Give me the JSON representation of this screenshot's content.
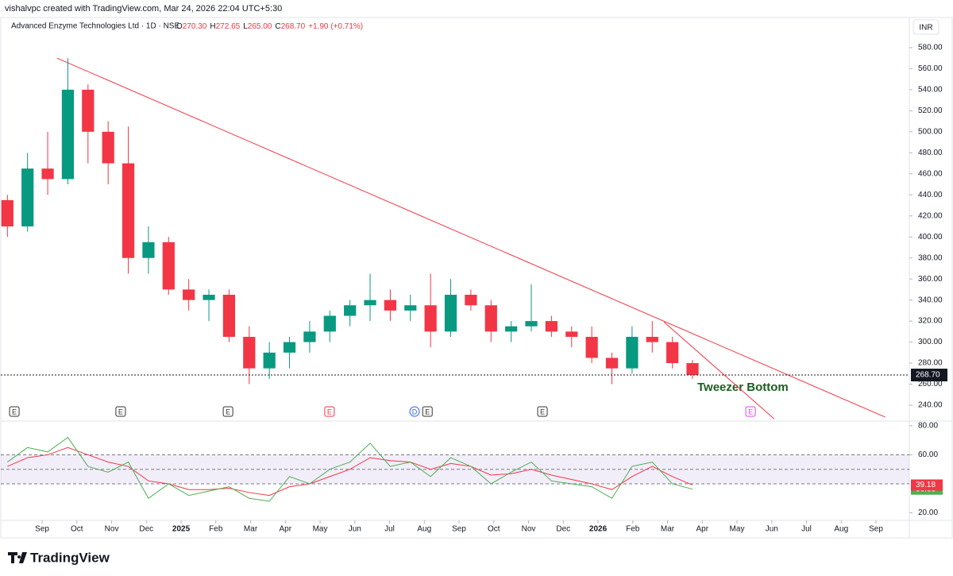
{
  "chart_data": {
    "type": "candlestick",
    "credit": "vishalvpc created with TradingView.com, Mar 24, 2026 22:04 UTC+5:30",
    "symbol": "Advanced Enzyme Technologies Ltd · 1D · NSE",
    "ohlc_header": [
      {
        "key": "O",
        "value": "270.30"
      },
      {
        "key": "H",
        "value": "272.65"
      },
      {
        "key": "L",
        "value": "265.00"
      },
      {
        "key": "C",
        "value": "268.70"
      }
    ],
    "change": "+1.90 (+0.71%)",
    "currency": "INR",
    "brand": "TradingView",
    "annotation": "Tweezer Bottom",
    "last_price": {
      "value": 268.7,
      "label": "268.70"
    },
    "up_color": "#089981",
    "down_color": "#f23645",
    "x": [
      -1,
      -0.42,
      0.16,
      0.74,
      1.32,
      1.9,
      2.48,
      3.06,
      3.64,
      4.22,
      4.8,
      5.38,
      5.96,
      6.54,
      7.12,
      7.7,
      8.28,
      8.86,
      9.44,
      10.02,
      10.6,
      11.18,
      11.76,
      12.34,
      12.92,
      13.5,
      14.08,
      14.66,
      15.24,
      15.82,
      16.4,
      16.98,
      17.56,
      18.14,
      18.72
    ],
    "open": [
      435,
      410,
      465,
      455,
      540,
      500,
      470,
      380,
      395,
      350,
      340,
      345,
      305,
      275,
      290,
      300,
      310,
      325,
      335,
      340,
      330,
      335,
      310,
      345,
      335,
      310,
      315,
      320,
      310,
      305,
      285,
      275,
      305,
      300,
      280
    ],
    "high": [
      440,
      480,
      500,
      570,
      545,
      510,
      505,
      410,
      400,
      360,
      350,
      350,
      315,
      300,
      305,
      320,
      330,
      340,
      365,
      350,
      345,
      365,
      360,
      350,
      340,
      320,
      355,
      325,
      315,
      315,
      290,
      315,
      320,
      305,
      283
    ],
    "low": [
      400,
      405,
      440,
      450,
      470,
      450,
      365,
      365,
      345,
      330,
      320,
      300,
      260,
      265,
      275,
      290,
      300,
      315,
      320,
      320,
      320,
      295,
      305,
      330,
      300,
      300,
      310,
      305,
      295,
      280,
      260,
      270,
      290,
      275,
      265
    ],
    "close": [
      410,
      465,
      455,
      540,
      500,
      470,
      380,
      395,
      350,
      340,
      345,
      305,
      275,
      290,
      300,
      310,
      325,
      335,
      340,
      330,
      335,
      310,
      345,
      335,
      310,
      315,
      320,
      310,
      305,
      285,
      275,
      305,
      300,
      280,
      268.7
    ],
    "xlim": [
      -1.03,
      24.96
    ],
    "xticks": [
      {
        "value": 0,
        "label": "Sep"
      },
      {
        "value": 1,
        "label": "Oct"
      },
      {
        "value": 2,
        "label": "Nov"
      },
      {
        "value": 3,
        "label": "Dec"
      },
      {
        "value": 4,
        "label": "2025"
      },
      {
        "value": 5,
        "label": "Feb"
      },
      {
        "value": 6,
        "label": "Mar"
      },
      {
        "value": 7,
        "label": "Apr"
      },
      {
        "value": 8,
        "label": "May"
      },
      {
        "value": 9,
        "label": "Jun"
      },
      {
        "value": 10,
        "label": "Jul"
      },
      {
        "value": 11,
        "label": "Aug"
      },
      {
        "value": 12,
        "label": "Sep"
      },
      {
        "value": 13,
        "label": "Oct"
      },
      {
        "value": 14,
        "label": "Nov"
      },
      {
        "value": 15,
        "label": "Dec"
      },
      {
        "value": 16,
        "label": "2026"
      },
      {
        "value": 17,
        "label": "Feb"
      },
      {
        "value": 18,
        "label": "Mar"
      },
      {
        "value": 19,
        "label": "Apr"
      },
      {
        "value": 20,
        "label": "May"
      },
      {
        "value": 21,
        "label": "Jun"
      },
      {
        "value": 22,
        "label": "Jul"
      },
      {
        "value": 23,
        "label": "Aug"
      },
      {
        "value": 24,
        "label": "Sep"
      }
    ],
    "ylim": [
      226.4,
      591.3
    ],
    "yticks": [
      {
        "value": 240,
        "label": "240.00"
      },
      {
        "value": 260,
        "label": "260.00"
      },
      {
        "value": 280,
        "label": "280.00"
      },
      {
        "value": 300,
        "label": "300.00"
      },
      {
        "value": 320,
        "label": "320.00"
      },
      {
        "value": 340,
        "label": "340.00"
      },
      {
        "value": 360,
        "label": "360.00"
      },
      {
        "value": 380,
        "label": "380.00"
      },
      {
        "value": 400,
        "label": "400.00"
      },
      {
        "value": 420,
        "label": "420.00"
      },
      {
        "value": 440,
        "label": "440.00"
      },
      {
        "value": 460,
        "label": "460.00"
      },
      {
        "value": 480,
        "label": "480.00"
      },
      {
        "value": 500,
        "label": "500.00"
      },
      {
        "value": 520,
        "label": "520.00"
      },
      {
        "value": 540,
        "label": "540.00"
      },
      {
        "value": 560,
        "label": "560.00"
      },
      {
        "value": 580,
        "label": "580.00"
      }
    ],
    "trendlines": [
      {
        "x": [
          0.43,
          24.27
        ],
        "y": [
          570,
          228.6
        ],
        "color": "#f23645"
      },
      {
        "x": [
          17.9,
          21.07
        ],
        "y": [
          319,
          227
        ],
        "color": "#f23645"
      }
    ],
    "events": [
      {
        "x": -0.8,
        "label": "E",
        "color": "#333333"
      },
      {
        "x": 2.26,
        "label": "E",
        "color": "#333333"
      },
      {
        "x": 5.35,
        "label": "E",
        "color": "#333333"
      },
      {
        "x": 8.27,
        "label": "E",
        "color": "#f23645"
      },
      {
        "x": 10.72,
        "label": "D",
        "color": "#2962ff"
      },
      {
        "x": 11.09,
        "label": "E",
        "color": "#333333"
      },
      {
        "x": 14.4,
        "label": "E",
        "color": "#333333"
      },
      {
        "x": 20.39,
        "label": "E",
        "color": "#e040fb"
      }
    ],
    "rsi": {
      "ylim": [
        14.8,
        81.6
      ],
      "yticks": [
        {
          "value": 20,
          "label": "20.00"
        },
        {
          "value": 60,
          "label": "60.00"
        },
        {
          "value": 80,
          "label": "80.00"
        }
      ],
      "band": [
        40,
        60
      ],
      "mid": 50,
      "series": [
        {
          "name": "RSI",
          "color": "#4caf50",
          "values": [
            55,
            65,
            62,
            72,
            52,
            48,
            55,
            30,
            40,
            32,
            35,
            38,
            30,
            28,
            45,
            40,
            50,
            55,
            68,
            52,
            55,
            45,
            58,
            52,
            40,
            48,
            55,
            42,
            40,
            38,
            30,
            52,
            55,
            40,
            36.33
          ],
          "last_label": "36.33"
        },
        {
          "name": "RSI MA",
          "color": "#f23645",
          "values": [
            52,
            58,
            60,
            65,
            60,
            55,
            52,
            42,
            40,
            36,
            36,
            37,
            34,
            32,
            38,
            40,
            45,
            50,
            58,
            56,
            55,
            50,
            54,
            52,
            46,
            47,
            50,
            46,
            43,
            40,
            36,
            45,
            52,
            45,
            39.18
          ],
          "last_label": "39.18"
        }
      ]
    }
  }
}
